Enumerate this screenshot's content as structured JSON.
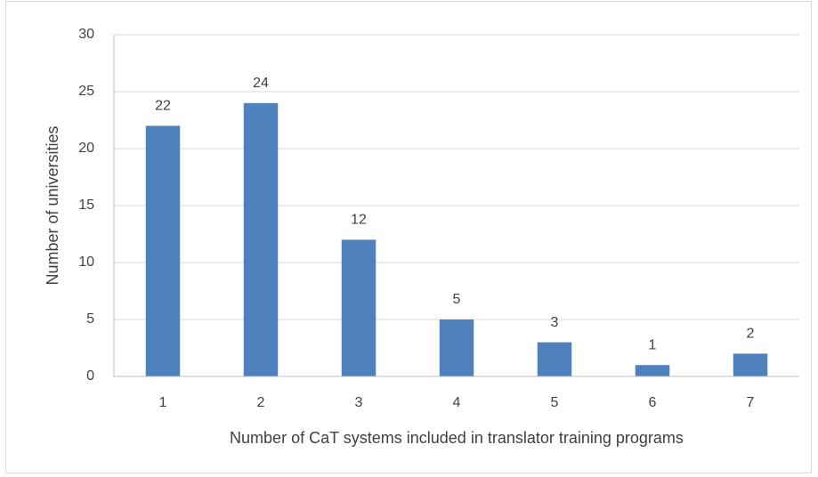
{
  "chart_data": {
    "type": "bar",
    "x_label": "Number of CaT systems included in translator training programs",
    "y_label": "Number of universities",
    "categories": [
      "1",
      "2",
      "3",
      "4",
      "5",
      "6",
      "7"
    ],
    "values": [
      22,
      24,
      12,
      5,
      3,
      1,
      2
    ],
    "color": "#4f81bd",
    "ylim": [
      0,
      30
    ],
    "yticks": [
      0,
      5,
      10,
      15,
      20,
      25,
      30
    ],
    "grid": true,
    "data_labels": true
  }
}
